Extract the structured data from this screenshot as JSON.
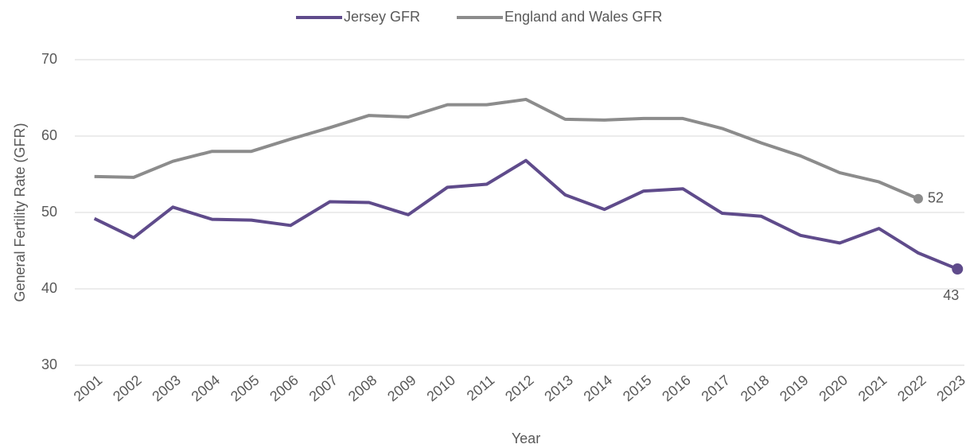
{
  "chart_data": {
    "type": "line",
    "x_label": "Year",
    "y_label": "General Fertility Rate (GFR)",
    "categories": [
      "2001",
      "2002",
      "2003",
      "2004",
      "2005",
      "2006",
      "2007",
      "2008",
      "2009",
      "2010",
      "2011",
      "2012",
      "2013",
      "2014",
      "2015",
      "2016",
      "2017",
      "2018",
      "2019",
      "2020",
      "2021",
      "2022",
      "2023"
    ],
    "series": [
      {
        "name": "Jersey GFR",
        "color": "#5f4b8b",
        "values": [
          49.2,
          46.7,
          50.7,
          49.1,
          49.0,
          48.3,
          51.4,
          51.3,
          49.7,
          53.3,
          53.7,
          56.8,
          52.3,
          50.4,
          52.8,
          53.1,
          49.9,
          49.5,
          47.0,
          46.0,
          47.9,
          44.7,
          42.6
        ],
        "value_labels": [
          null,
          null,
          null,
          null,
          null,
          null,
          null,
          null,
          null,
          null,
          null,
          null,
          null,
          null,
          null,
          null,
          null,
          null,
          null,
          null,
          null,
          null,
          "43"
        ]
      },
      {
        "name": "England and Wales GFR",
        "color": "#8c8c8c",
        "values": [
          54.7,
          54.6,
          56.7,
          58.0,
          58.0,
          59.6,
          61.1,
          62.7,
          62.5,
          64.1,
          64.1,
          64.8,
          62.2,
          62.1,
          62.3,
          62.3,
          61.0,
          59.1,
          57.4,
          55.2,
          54.0,
          51.8,
          null
        ],
        "value_labels": [
          null,
          null,
          null,
          null,
          null,
          null,
          null,
          null,
          null,
          null,
          null,
          null,
          null,
          null,
          null,
          null,
          null,
          null,
          null,
          null,
          null,
          "52",
          null
        ]
      }
    ],
    "ylim": [
      30,
      70
    ],
    "yticks": [
      30,
      40,
      50,
      60,
      70
    ],
    "grid": true,
    "legend": "top"
  }
}
